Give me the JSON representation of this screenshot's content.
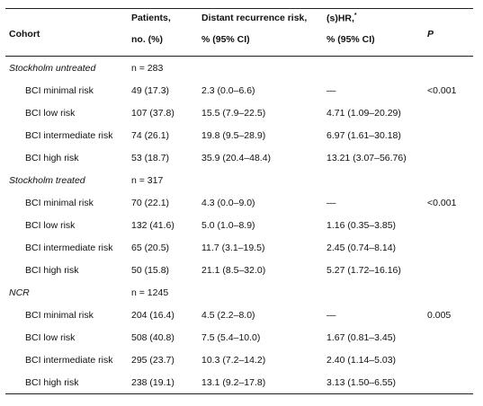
{
  "header": {
    "cohort": "Cohort",
    "patients_line1": "Patients,",
    "patients_line2": "no. (%)",
    "drr_line1": "Distant recurrence risk,",
    "drr_line2": "% (95% CI)",
    "hr_line1": "(s)HR,",
    "hr_sup": "*",
    "hr_line2": "% (95% CI)",
    "p": "P"
  },
  "groups": [
    {
      "name": "Stockholm untreated",
      "n": "n = 283",
      "rows": [
        {
          "label": "BCI minimal risk",
          "patients": "49 (17.3)",
          "drr": "2.3 (0.0–6.6)",
          "hr": "—",
          "p": "<0.001"
        },
        {
          "label": "BCI low risk",
          "patients": "107 (37.8)",
          "drr": "15.5 (7.9–22.5)",
          "hr": "4.71 (1.09–20.29)",
          "p": ""
        },
        {
          "label": "BCI intermediate risk",
          "patients": "74 (26.1)",
          "drr": "19.8 (9.5–28.9)",
          "hr": "6.97 (1.61–30.18)",
          "p": ""
        },
        {
          "label": "BCI high risk",
          "patients": "53 (18.7)",
          "drr": "35.9 (20.4–48.4)",
          "hr": "13.21 (3.07–56.76)",
          "p": ""
        }
      ]
    },
    {
      "name": "Stockholm treated",
      "n": "n = 317",
      "rows": [
        {
          "label": "BCI minimal risk",
          "patients": "70 (22.1)",
          "drr": "4.3 (0.0–9.0)",
          "hr": "—",
          "p": "<0.001"
        },
        {
          "label": "BCI low risk",
          "patients": "132 (41.6)",
          "drr": "5.0 (1.0–8.9)",
          "hr": "1.16 (0.35–3.85)",
          "p": ""
        },
        {
          "label": "BCI intermediate risk",
          "patients": "65 (20.5)",
          "drr": "11.7 (3.1–19.5)",
          "hr": "2.45 (0.74–8.14)",
          "p": ""
        },
        {
          "label": "BCI high risk",
          "patients": "50 (15.8)",
          "drr": "21.1 (8.5–32.0)",
          "hr": "5.27 (1.72–16.16)",
          "p": ""
        }
      ]
    },
    {
      "name": "NCR",
      "n": "n = 1245",
      "rows": [
        {
          "label": "BCI minimal risk",
          "patients": "204 (16.4)",
          "drr": "4.5 (2.2–8.0)",
          "hr": "—",
          "p": "0.005"
        },
        {
          "label": "BCI low risk",
          "patients": "508 (40.8)",
          "drr": "7.5 (5.4–10.0)",
          "hr": "1.67 (0.81–3.45)",
          "p": ""
        },
        {
          "label": "BCI intermediate risk",
          "patients": "295 (23.7)",
          "drr": "10.3 (7.2–14.2)",
          "hr": "2.40 (1.14–5.03)",
          "p": ""
        },
        {
          "label": "BCI high risk",
          "patients": "238 (19.1)",
          "drr": "13.1 (9.2–17.8)",
          "hr": "3.13 (1.50–6.55)",
          "p": ""
        }
      ]
    }
  ]
}
